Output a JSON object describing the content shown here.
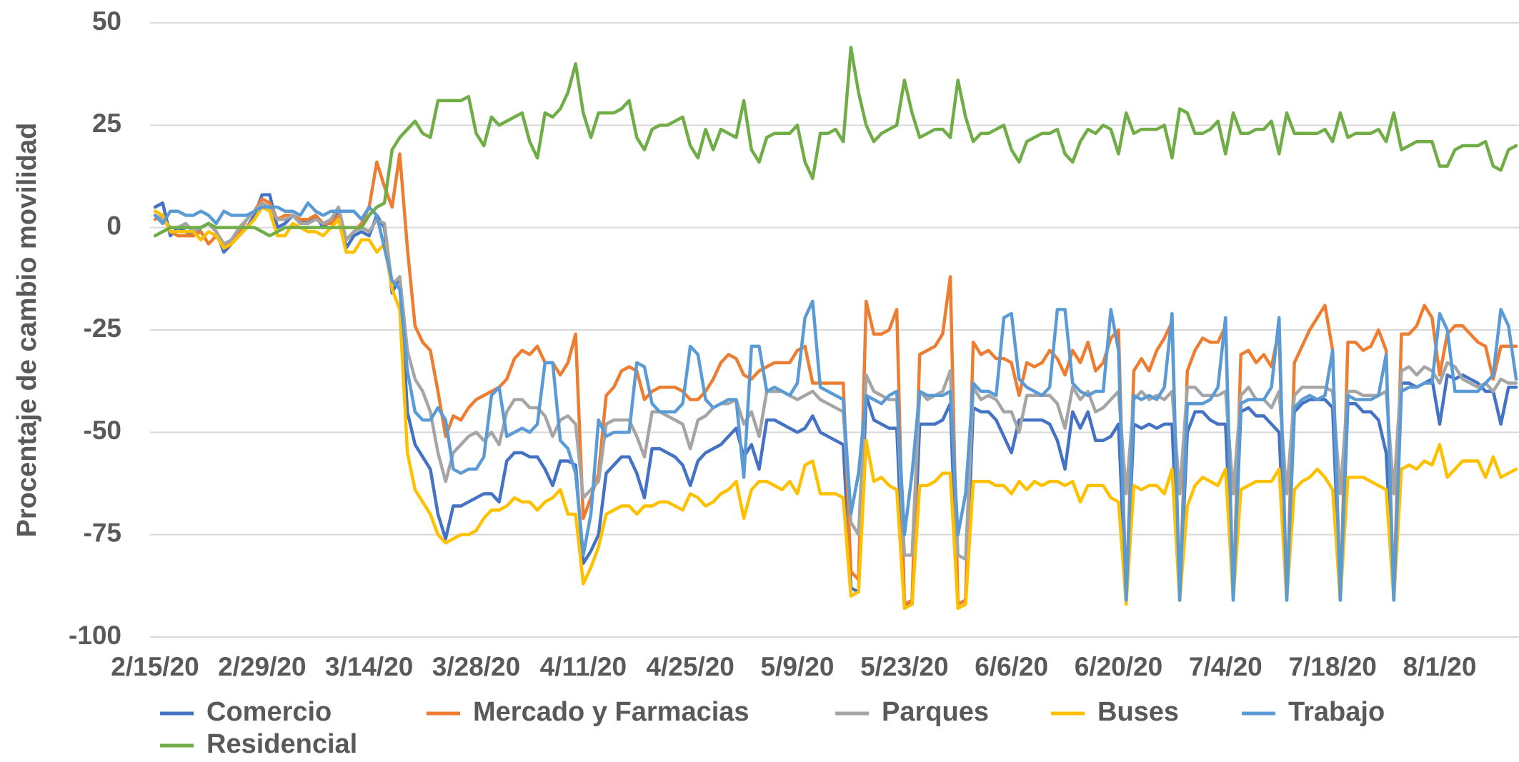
{
  "chart_data": {
    "type": "line",
    "y_label": "Procentaje de cambio movilidad",
    "ylim": [
      -100,
      50
    ],
    "yticks": [
      -100,
      -75,
      -50,
      -25,
      0,
      25,
      50
    ],
    "grid": true,
    "legend": "bottom",
    "categories": [
      "2/15/20",
      null,
      null,
      null,
      null,
      null,
      null,
      null,
      null,
      null,
      null,
      null,
      null,
      null,
      "2/29/20",
      null,
      null,
      null,
      null,
      null,
      null,
      null,
      null,
      null,
      null,
      null,
      null,
      null,
      "3/14/20",
      null,
      null,
      null,
      null,
      null,
      null,
      null,
      null,
      null,
      null,
      null,
      null,
      null,
      "3/28/20",
      null,
      null,
      null,
      null,
      null,
      null,
      null,
      null,
      null,
      null,
      null,
      null,
      null,
      "4/11/20",
      null,
      null,
      null,
      null,
      null,
      null,
      null,
      null,
      null,
      null,
      null,
      null,
      null,
      "4/25/20",
      null,
      null,
      null,
      null,
      null,
      null,
      null,
      null,
      null,
      null,
      null,
      null,
      null,
      "5/9/20",
      null,
      null,
      null,
      null,
      null,
      null,
      null,
      null,
      null,
      null,
      null,
      null,
      null,
      "5/23/20",
      null,
      null,
      null,
      null,
      null,
      null,
      null,
      null,
      null,
      null,
      null,
      null,
      null,
      "6/6/20",
      null,
      null,
      null,
      null,
      null,
      null,
      null,
      null,
      null,
      null,
      null,
      null,
      null,
      "6/20/20",
      null,
      null,
      null,
      null,
      null,
      null,
      null,
      null,
      null,
      null,
      null,
      null,
      null,
      "7/4/20",
      null,
      null,
      null,
      null,
      null,
      null,
      null,
      null,
      null,
      null,
      null,
      null,
      null,
      "7/18/20",
      null,
      null,
      null,
      null,
      null,
      null,
      null,
      null,
      null,
      null,
      null,
      null,
      null,
      "8/1/20",
      null,
      null,
      null,
      null,
      null,
      null,
      null,
      null,
      null,
      null
    ],
    "series": [
      {
        "name": "Comercio",
        "color": "#4472c4",
        "values": [
          5,
          6,
          -2,
          0,
          -1,
          -2,
          0,
          1,
          -1,
          -6,
          -4,
          -2,
          0,
          3,
          8,
          8,
          0,
          1,
          3,
          2,
          1,
          3,
          0,
          2,
          4,
          -5,
          -2,
          -1,
          -2,
          3,
          0,
          -16,
          -12,
          -45,
          -53,
          -56,
          -59,
          -70,
          -76,
          -68,
          -68,
          -67,
          -66,
          -65,
          -65,
          -67,
          -57,
          -55,
          -55,
          -56,
          -56,
          -59,
          -63,
          -57,
          -57,
          -58,
          -82,
          -79,
          -75,
          -60,
          -58,
          -56,
          -56,
          -60,
          -66,
          -54,
          -54,
          -55,
          -56,
          -58,
          -63,
          -57,
          -55,
          -54,
          -53,
          -51,
          -49,
          -56,
          -53,
          -59,
          -47,
          -47,
          -48,
          -49,
          -50,
          -49,
          -46,
          -50,
          -51,
          -52,
          -53,
          -88,
          -89,
          -41,
          -47,
          -48,
          -49,
          -49,
          -92,
          -92,
          -48,
          -48,
          -48,
          -47,
          -43,
          -92,
          -91,
          -44,
          -45,
          -45,
          -47,
          -51,
          -55,
          -47,
          -47,
          -47,
          -47,
          -48,
          -52,
          -59,
          -45,
          -49,
          -45,
          -52,
          -52,
          -51,
          -48,
          -91,
          -48,
          -49,
          -48,
          -49,
          -48,
          -48,
          -91,
          -50,
          -45,
          -45,
          -47,
          -48,
          -48,
          -91,
          -45,
          -44,
          -46,
          -46,
          -48,
          -50,
          -91,
          -45,
          -43,
          -42,
          -42,
          -42,
          -44,
          -91,
          -43,
          -43,
          -45,
          -45,
          -47,
          -55,
          -91,
          -38,
          -38,
          -39,
          -38,
          -37,
          -48,
          -36,
          -37,
          -36,
          -37,
          -38,
          -40,
          -40,
          -48,
          -39,
          -39
        ]
      },
      {
        "name": "Mercado y Farmacias",
        "color": "#ed7d31",
        "values": [
          2,
          3,
          -1,
          -2,
          -2,
          -2,
          -1,
          -4,
          -2,
          -5,
          -3,
          -1,
          2,
          4,
          7,
          6,
          2,
          3,
          3,
          2,
          2,
          3,
          1,
          1,
          3,
          -3,
          -1,
          1,
          5,
          16,
          10,
          5,
          18,
          -5,
          -24,
          -28,
          -30,
          -40,
          -51,
          -46,
          -47,
          -44,
          -42,
          -41,
          -40,
          -39,
          -37,
          -32,
          -30,
          -31,
          -29,
          -33,
          -33,
          -36,
          -33,
          -26,
          -71,
          -66,
          -60,
          -41,
          -39,
          -35,
          -34,
          -35,
          -42,
          -40,
          -39,
          -39,
          -39,
          -40,
          -42,
          -42,
          -40,
          -37,
          -33,
          -31,
          -32,
          -36,
          -37,
          -35,
          -34,
          -33,
          -33,
          -33,
          -30,
          -29,
          -38,
          -38,
          -38,
          -38,
          -38,
          -84,
          -86,
          -18,
          -26,
          -26,
          -25,
          -20,
          -92,
          -91,
          -31,
          -30,
          -29,
          -26,
          -12,
          -92,
          -91,
          -28,
          -31,
          -30,
          -32,
          -32,
          -33,
          -41,
          -33,
          -34,
          -33,
          -30,
          -32,
          -36,
          -30,
          -33,
          -28,
          -35,
          -33,
          -27,
          -25,
          -91,
          -35,
          -32,
          -35,
          -30,
          -27,
          -23,
          -91,
          -35,
          -30,
          -27,
          -28,
          -28,
          -24,
          -91,
          -31,
          -30,
          -33,
          -31,
          -34,
          -25,
          -91,
          -33,
          -29,
          -25,
          -22,
          -19,
          -30,
          -91,
          -28,
          -28,
          -30,
          -29,
          -25,
          -30,
          -91,
          -26,
          -26,
          -24,
          -19,
          -22,
          -36,
          -26,
          -24,
          -24,
          -26,
          -28,
          -29,
          -37,
          -29,
          -29,
          -29
        ]
      },
      {
        "name": "Parques",
        "color": "#a5a5a5",
        "values": [
          3,
          2,
          0,
          0,
          1,
          -1,
          0,
          1,
          -1,
          -4,
          -3,
          0,
          2,
          4,
          6,
          5,
          2,
          2,
          3,
          1,
          1,
          2,
          1,
          2,
          5,
          -3,
          -1,
          0,
          -1,
          2,
          1,
          -14,
          -12,
          -30,
          -37,
          -40,
          -45,
          -55,
          -62,
          -55,
          -53,
          -51,
          -50,
          -52,
          -50,
          -53,
          -45,
          -42,
          -42,
          -44,
          -44,
          -46,
          -51,
          -47,
          -46,
          -48,
          -66,
          -64,
          -62,
          -48,
          -47,
          -47,
          -47,
          -51,
          -56,
          -45,
          -45,
          -46,
          -47,
          -48,
          -54,
          -47,
          -46,
          -44,
          -43,
          -43,
          -42,
          -48,
          -45,
          -51,
          -40,
          -40,
          -40,
          -41,
          -42,
          -41,
          -40,
          -42,
          -43,
          -44,
          -45,
          -72,
          -75,
          -36,
          -40,
          -41,
          -42,
          -42,
          -80,
          -80,
          -40,
          -42,
          -41,
          -40,
          -35,
          -80,
          -81,
          -39,
          -42,
          -41,
          -42,
          -45,
          -45,
          -50,
          -41,
          -41,
          -41,
          -41,
          -43,
          -49,
          -39,
          -42,
          -40,
          -45,
          -44,
          -42,
          -40,
          -65,
          -42,
          -40,
          -42,
          -41,
          -42,
          -40,
          -65,
          -39,
          -39,
          -41,
          -41,
          -41,
          -40,
          -65,
          -41,
          -39,
          -42,
          -42,
          -44,
          -40,
          -65,
          -41,
          -39,
          -39,
          -39,
          -39,
          -40,
          -65,
          -40,
          -40,
          -41,
          -41,
          -41,
          -40,
          -65,
          -35,
          -34,
          -36,
          -34,
          -35,
          -38,
          -33,
          -34,
          -37,
          -38,
          -39,
          -38,
          -40,
          -37,
          -38,
          -38
        ]
      },
      {
        "name": "Buses",
        "color": "#ffc000",
        "values": [
          4,
          3,
          -1,
          -1,
          -1,
          -1,
          -3,
          -1,
          -2,
          -5,
          -4,
          -2,
          0,
          2,
          5,
          4,
          -2,
          -2,
          1,
          0,
          -1,
          -1,
          -2,
          0,
          2,
          -6,
          -6,
          -3,
          -3,
          -6,
          -4,
          -15,
          -20,
          -55,
          -64,
          -67,
          -70,
          -75,
          -77,
          -76,
          -75,
          -75,
          -74,
          -71,
          -69,
          -69,
          -68,
          -66,
          -67,
          -67,
          -69,
          -67,
          -66,
          -64,
          -70,
          -70,
          -87,
          -83,
          -78,
          -70,
          -69,
          -68,
          -68,
          -70,
          -68,
          -68,
          -67,
          -67,
          -68,
          -69,
          -65,
          -66,
          -68,
          -67,
          -65,
          -64,
          -62,
          -71,
          -64,
          -62,
          -62,
          -63,
          -64,
          -62,
          -65,
          -58,
          -57,
          -65,
          -65,
          -65,
          -66,
          -90,
          -89,
          -52,
          -62,
          -61,
          -63,
          -64,
          -93,
          -92,
          -63,
          -63,
          -62,
          -60,
          -60,
          -93,
          -92,
          -62,
          -62,
          -62,
          -63,
          -63,
          -65,
          -62,
          -64,
          -62,
          -63,
          -62,
          -62,
          -63,
          -62,
          -67,
          -63,
          -63,
          -63,
          -66,
          -67,
          -92,
          -63,
          -64,
          -63,
          -63,
          -65,
          -59,
          -91,
          -68,
          -63,
          -61,
          -62,
          -63,
          -59,
          -91,
          -64,
          -63,
          -62,
          -62,
          -62,
          -59,
          -91,
          -64,
          -62,
          -61,
          -59,
          -61,
          -64,
          -91,
          -61,
          -61,
          -61,
          -62,
          -63,
          -64,
          -91,
          -59,
          -58,
          -59,
          -57,
          -58,
          -53,
          -61,
          -59,
          -57,
          -57,
          -57,
          -61,
          -56,
          -61,
          -60,
          -59
        ]
      },
      {
        "name": "Trabajo",
        "color": "#5b9bd5",
        "values": [
          3,
          1,
          4,
          4,
          3,
          3,
          4,
          3,
          1,
          4,
          3,
          3,
          3,
          4,
          5,
          5,
          5,
          4,
          4,
          3,
          6,
          4,
          3,
          4,
          4,
          4,
          4,
          2,
          5,
          3,
          -5,
          -13,
          -15,
          -35,
          -45,
          -47,
          -47,
          -44,
          -47,
          -59,
          -60,
          -59,
          -59,
          -56,
          -41,
          -39,
          -51,
          -50,
          -49,
          -50,
          -48,
          -33,
          -33,
          -52,
          -54,
          -60,
          -80,
          -70,
          -47,
          -51,
          -50,
          -50,
          -50,
          -33,
          -34,
          -43,
          -45,
          -45,
          -45,
          -43,
          -29,
          -31,
          -42,
          -44,
          -43,
          -42,
          -42,
          -61,
          -29,
          -29,
          -40,
          -39,
          -40,
          -41,
          -38,
          -22,
          -18,
          -39,
          -40,
          -41,
          -42,
          -70,
          -60,
          -41,
          -42,
          -43,
          -41,
          -40,
          -75,
          -60,
          -40,
          -41,
          -41,
          -41,
          -40,
          -75,
          -65,
          -38,
          -40,
          -40,
          -41,
          -22,
          -21,
          -37,
          -39,
          -40,
          -41,
          -39,
          -20,
          -20,
          -38,
          -40,
          -41,
          -40,
          -40,
          -20,
          -30,
          -91,
          -41,
          -42,
          -41,
          -42,
          -39,
          -21,
          -91,
          -43,
          -43,
          -43,
          -42,
          -39,
          -22,
          -91,
          -43,
          -42,
          -42,
          -42,
          -39,
          -22,
          -91,
          -44,
          -42,
          -41,
          -42,
          -41,
          -30,
          -91,
          -41,
          -42,
          -42,
          -42,
          -41,
          -31,
          -91,
          -40,
          -39,
          -39,
          -38,
          -38,
          -21,
          -25,
          -40,
          -40,
          -40,
          -40,
          -38,
          -36,
          -20,
          -24,
          -37
        ]
      },
      {
        "name": "Residencial",
        "color": "#70ad47",
        "values": [
          -2,
          -1,
          0,
          0,
          0,
          0,
          0,
          1,
          0,
          0,
          0,
          0,
          0,
          0,
          -1,
          -2,
          -1,
          0,
          0,
          0,
          0,
          0,
          0,
          0,
          0,
          0,
          0,
          0,
          3,
          5,
          6,
          19,
          22,
          24,
          26,
          23,
          22,
          31,
          31,
          31,
          31,
          32,
          23,
          20,
          27,
          25,
          26,
          27,
          28,
          21,
          17,
          28,
          27,
          29,
          33,
          40,
          28,
          22,
          28,
          28,
          28,
          29,
          31,
          22,
          19,
          24,
          25,
          25,
          26,
          27,
          20,
          17,
          24,
          19,
          24,
          23,
          22,
          31,
          19,
          16,
          22,
          23,
          23,
          23,
          25,
          16,
          12,
          23,
          23,
          24,
          21,
          44,
          33,
          25,
          21,
          23,
          24,
          25,
          36,
          28,
          22,
          23,
          24,
          24,
          22,
          36,
          27,
          21,
          23,
          23,
          24,
          25,
          19,
          16,
          21,
          22,
          23,
          23,
          24,
          18,
          16,
          21,
          24,
          23,
          25,
          24,
          18,
          28,
          23,
          24,
          24,
          24,
          25,
          17,
          29,
          28,
          23,
          23,
          24,
          26,
          18,
          28,
          23,
          23,
          24,
          24,
          26,
          18,
          28,
          23,
          23,
          23,
          23,
          24,
          21,
          28,
          22,
          23,
          23,
          23,
          24,
          21,
          28,
          19,
          20,
          21,
          21,
          21,
          15,
          15,
          19,
          20,
          20,
          20,
          21,
          15,
          14,
          19,
          20
        ]
      }
    ]
  }
}
